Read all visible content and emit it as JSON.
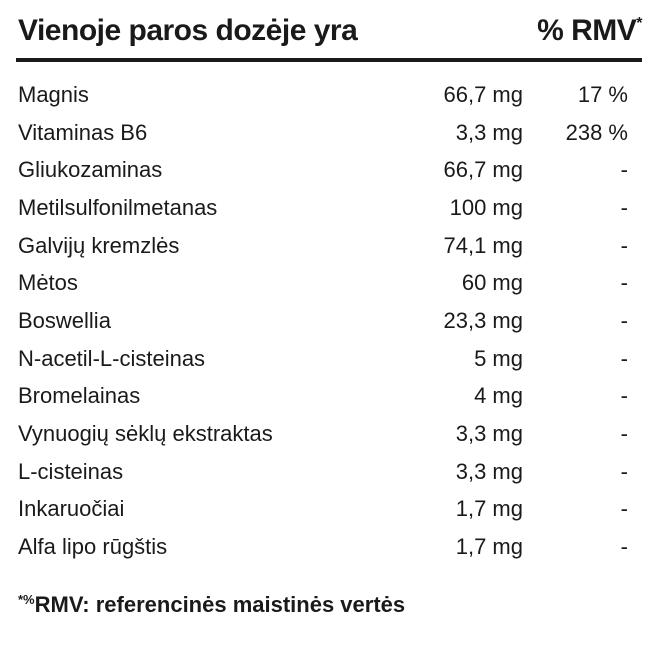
{
  "header": {
    "title": "Vienoje paros dozėje yra",
    "rmv_label": "% RMV",
    "rmv_mark": "*"
  },
  "rows": [
    {
      "name": "Magnis",
      "amount": "66,7 mg",
      "rmv": "17 %"
    },
    {
      "name": "Vitaminas B6",
      "amount": "3,3 mg",
      "rmv": "238 %"
    },
    {
      "name": "Gliukozaminas",
      "amount": "66,7 mg",
      "rmv": "-"
    },
    {
      "name": "Metilsulfonilmetanas",
      "amount": "100 mg",
      "rmv": "-"
    },
    {
      "name": "Galvijų kremzlės",
      "amount": "74,1 mg",
      "rmv": "-"
    },
    {
      "name": "Mėtos",
      "amount": "60 mg",
      "rmv": "-"
    },
    {
      "name": "Boswellia",
      "amount": "23,3 mg",
      "rmv": "-"
    },
    {
      "name": "N-acetil-L-cisteinas",
      "amount": "5 mg",
      "rmv": "-"
    },
    {
      "name": "Bromelainas",
      "amount": "4 mg",
      "rmv": "-"
    },
    {
      "name": "Vynuogių sėklų ekstraktas",
      "amount": "3,3 mg",
      "rmv": "-"
    },
    {
      "name": "L-cisteinas",
      "amount": "3,3 mg",
      "rmv": "-"
    },
    {
      "name": "Inkaruočiai",
      "amount": "1,7 mg",
      "rmv": "-"
    },
    {
      "name": "Alfa lipo rūgštis",
      "amount": "1,7 mg",
      "rmv": "-"
    }
  ],
  "footnote": {
    "mark": "*%",
    "text": "RMV: referencinės maistinės vertės"
  }
}
